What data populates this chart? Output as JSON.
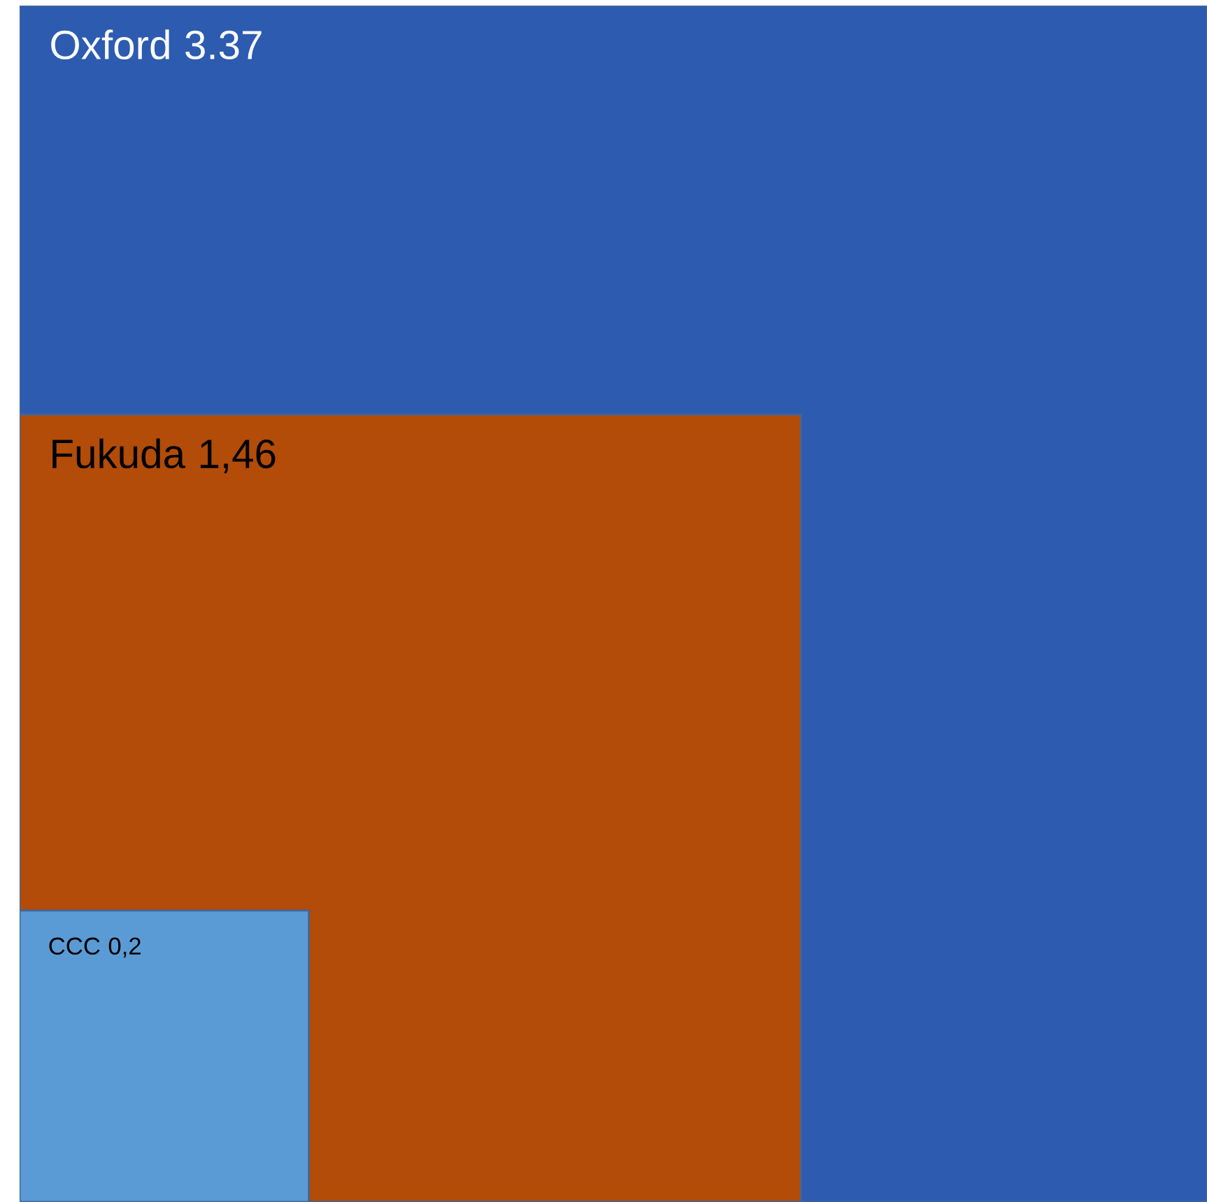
{
  "chart_data": {
    "type": "other",
    "categories": [
      "Oxford",
      "Fukuda",
      "CCC"
    ],
    "values": [
      3.37,
      1.46,
      0.2
    ],
    "value_labels": [
      "3.37",
      "1,46",
      "0,2"
    ],
    "colors": [
      "#2c5bb0",
      "#b24c08",
      "#5b9bd5"
    ]
  }
}
